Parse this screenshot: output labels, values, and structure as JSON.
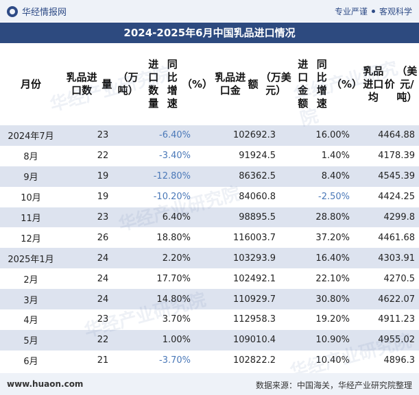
{
  "brand": "华经情报网",
  "slogan_left": "专业严谨",
  "slogan_right": "客观科学",
  "title": "2024-2025年6月中国乳品进口情况",
  "headers": [
    "月份",
    "乳品进口数量（万吨）",
    "进口数量同比增速（%）",
    "乳品进口金额（万美元）",
    "进口金额同比增速（%）",
    "乳品进口均价（美元/吨）"
  ],
  "header_lines": [
    [
      "月份"
    ],
    [
      "乳品进口数",
      "量",
      "（万吨）"
    ],
    [
      "进口数量",
      "同比增速",
      "（%）"
    ],
    [
      "乳品进口金",
      "额",
      "（万美元）"
    ],
    [
      "进口金额",
      "同比增速",
      "（%）"
    ],
    [
      "乳品进口均",
      "价",
      "（美元/吨）"
    ]
  ],
  "rows": [
    {
      "month": "2024年7月",
      "qty": "23",
      "qty_yoy": "-6.40%",
      "amt": "102692.3",
      "amt_yoy": "16.00%",
      "price": "4464.88"
    },
    {
      "month": "8月",
      "qty": "22",
      "qty_yoy": "-3.40%",
      "amt": "91924.5",
      "amt_yoy": "1.40%",
      "price": "4178.39"
    },
    {
      "month": "9月",
      "qty": "19",
      "qty_yoy": "-12.80%",
      "amt": "86362.5",
      "amt_yoy": "8.40%",
      "price": "4545.39"
    },
    {
      "month": "10月",
      "qty": "19",
      "qty_yoy": "-10.20%",
      "amt": "84060.8",
      "amt_yoy": "-2.50%",
      "price": "4424.25"
    },
    {
      "month": "11月",
      "qty": "23",
      "qty_yoy": "6.40%",
      "amt": "98895.5",
      "amt_yoy": "28.80%",
      "price": "4299.8"
    },
    {
      "month": "12月",
      "qty": "26",
      "qty_yoy": "18.80%",
      "amt": "116003.7",
      "amt_yoy": "37.20%",
      "price": "4461.68"
    },
    {
      "month": "2025年1月",
      "qty": "24",
      "qty_yoy": "2.20%",
      "amt": "103293.9",
      "amt_yoy": "16.40%",
      "price": "4303.91"
    },
    {
      "month": "2月",
      "qty": "24",
      "qty_yoy": "17.70%",
      "amt": "102492.1",
      "amt_yoy": "22.10%",
      "price": "4270.5"
    },
    {
      "month": "3月",
      "qty": "24",
      "qty_yoy": "14.80%",
      "amt": "110929.7",
      "amt_yoy": "30.80%",
      "price": "4622.07"
    },
    {
      "month": "4月",
      "qty": "23",
      "qty_yoy": "3.70%",
      "amt": "112958.3",
      "amt_yoy": "19.20%",
      "price": "4911.23"
    },
    {
      "month": "5月",
      "qty": "22",
      "qty_yoy": "1.00%",
      "amt": "109010.4",
      "amt_yoy": "10.90%",
      "price": "4955.02"
    },
    {
      "month": "6月",
      "qty": "21",
      "qty_yoy": "-3.70%",
      "amt": "102822.2",
      "amt_yoy": "10.40%",
      "price": "4896.3"
    }
  ],
  "footer_site": "www.huaon.com",
  "footer_source": "数据来源：中国海关，华经产业研究院整理",
  "watermark": "华经产业研究院",
  "colors": {
    "title_bg": "#2d4a7f",
    "alt_row": "#dde3ef",
    "negative": "#4a78b8"
  }
}
